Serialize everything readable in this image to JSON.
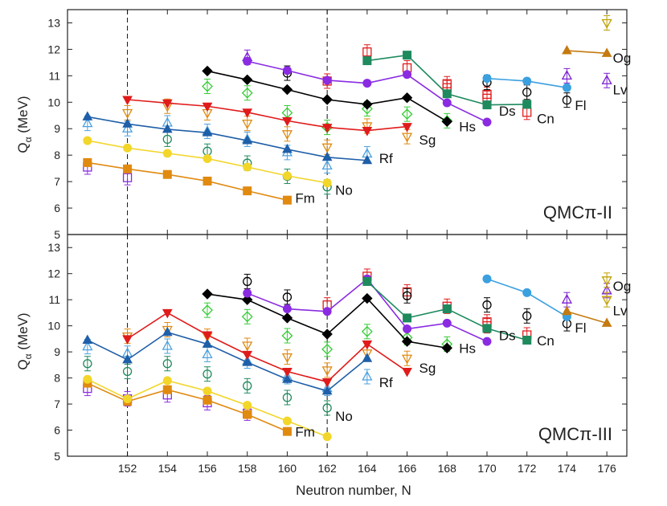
{
  "chart_data": {
    "type": "line",
    "x_label": "Neutron number, N",
    "y_label_main": "Q",
    "y_label_sub": "α",
    "y_label_unit": "(MeV)",
    "xlim": [
      149,
      177
    ],
    "x_ticks": [
      152,
      154,
      156,
      158,
      160,
      162,
      164,
      166,
      168,
      170,
      172,
      174,
      176
    ],
    "ylim": [
      5,
      13.5
    ],
    "y_ticks": [
      5,
      6,
      7,
      8,
      9,
      10,
      11,
      12,
      13
    ],
    "vlines": [
      152,
      162
    ],
    "colors": {
      "Fm": "#e08a10",
      "No": "#f2d62a",
      "Rf": "#1f5fa8",
      "Sg": "#e01b1b",
      "Hs": "#000000",
      "Ds": "#8a2be2",
      "Cn": "#1e8a5e",
      "Fl": "#3aa0e0",
      "Lv": "#7b1fd1",
      "Og": "#c47a10",
      "Fm_exp": "#8a2be2",
      "No_exp": "#1e8a5e",
      "Rf_exp": "#4aa0e0",
      "Sg_exp": "#e08a10",
      "Hs_exp": "#33cc33",
      "Ds_exp": "#e01b1b",
      "Cn_exp": "#e01b1b",
      "Fl_exp": "#000000",
      "Lv_exp": "#7b1fd1",
      "Og_exp": "#c0a000"
    },
    "panels": [
      {
        "model_prefix": "QMCπ",
        "model_suffix": "-II",
        "series": [
          {
            "name": "Fm",
            "x": [
              150,
              152,
              154,
              156,
              158,
              160
            ],
            "y": [
              7.72,
              7.48,
              7.27,
              7.02,
              6.65,
              6.3
            ]
          },
          {
            "name": "No",
            "x": [
              150,
              152,
              154,
              156,
              158,
              160,
              162
            ],
            "y": [
              8.55,
              8.27,
              8.07,
              7.87,
              7.55,
              7.22,
              6.95
            ]
          },
          {
            "name": "Rf",
            "x": [
              150,
              152,
              154,
              156,
              158,
              160,
              162,
              164
            ],
            "y": [
              9.45,
              9.18,
              8.98,
              8.85,
              8.55,
              8.22,
              7.92,
              7.8
            ]
          },
          {
            "name": "Sg",
            "x": [
              152,
              154,
              156,
              158,
              160,
              162,
              164,
              166
            ],
            "y": [
              10.1,
              9.97,
              9.85,
              9.62,
              9.3,
              9.05,
              8.93,
              9.08
            ]
          },
          {
            "name": "Hs",
            "x": [
              156,
              158,
              160,
              162,
              164,
              166,
              168
            ],
            "y": [
              11.18,
              10.85,
              10.48,
              10.1,
              9.92,
              10.17,
              9.27
            ]
          },
          {
            "name": "Ds",
            "x": [
              158,
              160,
              162,
              164,
              166,
              168,
              170
            ],
            "y": [
              11.55,
              11.2,
              10.83,
              10.72,
              11.05,
              9.98,
              9.25
            ]
          },
          {
            "name": "Cn",
            "x": [
              164,
              166,
              168,
              170,
              172
            ],
            "y": [
              11.57,
              11.78,
              10.32,
              9.9,
              9.92
            ]
          },
          {
            "name": "Fl",
            "x": [
              170,
              172,
              174
            ],
            "y": [
              10.9,
              10.8,
              10.55
            ]
          },
          {
            "name": "Og",
            "x": [
              174,
              176
            ],
            "y": [
              11.95,
              11.85
            ]
          }
        ],
        "experimental": [
          {
            "name": "Fm_exp",
            "x": [
              150,
              152
            ],
            "y": [
              7.55,
              7.15
            ]
          },
          {
            "name": "No_exp",
            "x": [
              154,
              156,
              158,
              160,
              162
            ],
            "y": [
              8.6,
              8.15,
              7.7,
              7.2,
              6.8
            ]
          },
          {
            "name": "Rf_exp",
            "x": [
              150,
              152,
              154,
              156,
              158,
              160,
              162,
              164
            ],
            "y": [
              9.2,
              9.0,
              9.22,
              8.9,
              8.6,
              8.1,
              7.6,
              8.05
            ]
          },
          {
            "name": "Sg_exp",
            "x": [
              152,
              154,
              156,
              158,
              160,
              162,
              164,
              166
            ],
            "y": [
              9.6,
              9.85,
              9.6,
              9.2,
              8.8,
              8.3,
              9.1,
              8.7
            ]
          },
          {
            "name": "Hs_exp",
            "x": [
              156,
              158,
              160,
              162,
              164,
              166,
              168
            ],
            "y": [
              10.6,
              10.35,
              9.6,
              9.05,
              9.75,
              9.55,
              9.3
            ]
          },
          {
            "name": "Ds_exp",
            "x": [
              162,
              164,
              166,
              168,
              170
            ],
            "y": [
              10.8,
              11.9,
              11.3,
              10.7,
              10.15
            ]
          },
          {
            "name": "Cn_exp",
            "x": [
              168,
              170,
              172
            ],
            "y": [
              10.55,
              10.3,
              9.62
            ]
          },
          {
            "name": "Fl_exp",
            "x": [
              160,
              170,
              172,
              174
            ],
            "y": [
              11.1,
              10.75,
              10.38,
              10.08
            ]
          },
          {
            "name": "Lv_exp",
            "x": [
              158,
              174,
              176
            ],
            "y": [
              11.7,
              11.0,
              10.82
            ]
          },
          {
            "name": "Og_exp",
            "x": [
              176
            ],
            "y": [
              13.0
            ]
          }
        ],
        "labels": [
          {
            "text": "Fm",
            "x": 160.4,
            "y": 6.2
          },
          {
            "text": "No",
            "x": 162.4,
            "y": 6.5
          },
          {
            "text": "Rf",
            "x": 164.6,
            "y": 7.7
          },
          {
            "text": "Sg",
            "x": 166.6,
            "y": 8.4
          },
          {
            "text": "Hs",
            "x": 168.6,
            "y": 8.9
          },
          {
            "text": "Ds",
            "x": 170.6,
            "y": 9.5
          },
          {
            "text": "Cn",
            "x": 172.5,
            "y": 9.2
          },
          {
            "text": "Fl",
            "x": 174.4,
            "y": 9.7
          },
          {
            "text": "Lv",
            "x": 176.3,
            "y": 10.3
          },
          {
            "text": "Og",
            "x": 176.3,
            "y": 11.5
          }
        ]
      },
      {
        "model_prefix": "QMCπ",
        "model_suffix": "-III",
        "series": [
          {
            "name": "Fm",
            "x": [
              150,
              152,
              154,
              156,
              158,
              160
            ],
            "y": [
              7.8,
              7.1,
              7.55,
              7.15,
              6.6,
              5.95
            ]
          },
          {
            "name": "No",
            "x": [
              150,
              152,
              154,
              156,
              158,
              160,
              162
            ],
            "y": [
              7.95,
              7.2,
              7.9,
              7.5,
              6.95,
              6.35,
              5.75
            ]
          },
          {
            "name": "Rf",
            "x": [
              150,
              152,
              154,
              156,
              158,
              160,
              162,
              164
            ],
            "y": [
              9.45,
              8.7,
              9.75,
              9.3,
              8.6,
              7.95,
              7.5,
              8.75
            ]
          },
          {
            "name": "Sg",
            "x": [
              152,
              154,
              156,
              158,
              160,
              162,
              164,
              166
            ],
            "y": [
              9.5,
              10.5,
              9.65,
              8.9,
              8.25,
              7.85,
              9.3,
              8.25
            ]
          },
          {
            "name": "Hs",
            "x": [
              156,
              158,
              160,
              162,
              164,
              166,
              168
            ],
            "y": [
              11.22,
              11.0,
              10.3,
              9.68,
              11.05,
              9.4,
              9.15
            ]
          },
          {
            "name": "Ds",
            "x": [
              158,
              160,
              162,
              164,
              166,
              168,
              170
            ],
            "y": [
              11.25,
              10.65,
              10.55,
              11.8,
              9.88,
              10.1,
              9.4
            ]
          },
          {
            "name": "Cn",
            "x": [
              164,
              166,
              168,
              170,
              172
            ],
            "y": [
              11.7,
              10.3,
              10.65,
              9.9,
              9.45
            ]
          },
          {
            "name": "Fl",
            "x": [
              170,
              172,
              174
            ],
            "y": [
              11.8,
              11.27,
              10.35
            ]
          },
          {
            "name": "Og",
            "x": [
              174,
              176
            ],
            "y": [
              10.55,
              10.1
            ]
          }
        ],
        "experimental": [
          {
            "name": "Fm_exp",
            "x": [
              150,
              152,
              154,
              156,
              158
            ],
            "y": [
              7.6,
              7.2,
              7.35,
              7.05,
              6.65
            ]
          },
          {
            "name": "No_exp",
            "x": [
              150,
              152,
              154,
              156,
              158,
              160,
              162
            ],
            "y": [
              8.55,
              8.25,
              8.55,
              8.15,
              7.7,
              7.25,
              6.85
            ]
          },
          {
            "name": "Rf_exp",
            "x": [
              150,
              152,
              154,
              156,
              158,
              160,
              162,
              164
            ],
            "y": [
              9.2,
              8.95,
              9.22,
              8.9,
              8.65,
              8.05,
              7.6,
              8.05
            ]
          },
          {
            "name": "Sg_exp",
            "x": [
              152,
              154,
              156,
              158,
              160,
              162,
              164,
              166
            ],
            "y": [
              9.6,
              9.85,
              9.6,
              9.25,
              8.8,
              8.3,
              8.95,
              8.75
            ]
          },
          {
            "name": "Hs_exp",
            "x": [
              156,
              158,
              160,
              162,
              164,
              166,
              168
            ],
            "y": [
              10.6,
              10.35,
              9.62,
              9.1,
              9.78,
              9.55,
              9.3
            ]
          },
          {
            "name": "Ds_exp",
            "x": [
              162,
              164,
              166,
              168,
              170
            ],
            "y": [
              10.8,
              11.9,
              11.3,
              10.75,
              10.15
            ]
          },
          {
            "name": "Cn_exp",
            "x": [
              170,
              172
            ],
            "y": [
              10.0,
              9.65
            ]
          },
          {
            "name": "Fl_exp",
            "x": [
              158,
              160,
              166,
              170,
              172,
              174
            ],
            "y": [
              11.7,
              11.1,
              11.15,
              10.8,
              10.38,
              10.08
            ]
          },
          {
            "name": "Lv_exp",
            "x": [
              174,
              176
            ],
            "y": [
              11.0,
              11.35
            ]
          },
          {
            "name": "Og_exp",
            "x": [
              176,
              176
            ],
            "y": [
              11.75,
              11.0
            ]
          }
        ],
        "labels": [
          {
            "text": "Fm",
            "x": 160.4,
            "y": 5.75
          },
          {
            "text": "No",
            "x": 162.4,
            "y": 6.35
          },
          {
            "text": "Rf",
            "x": 164.6,
            "y": 7.65
          },
          {
            "text": "Sg",
            "x": 166.6,
            "y": 8.2
          },
          {
            "text": "Hs",
            "x": 168.6,
            "y": 8.95
          },
          {
            "text": "Ds",
            "x": 170.6,
            "y": 9.45
          },
          {
            "text": "Cn",
            "x": 172.5,
            "y": 9.25
          },
          {
            "text": "Fl",
            "x": 174.4,
            "y": 9.75
          },
          {
            "text": "Lv",
            "x": 176.3,
            "y": 10.4
          },
          {
            "text": "Og",
            "x": 176.3,
            "y": 11.35
          }
        ]
      }
    ]
  }
}
